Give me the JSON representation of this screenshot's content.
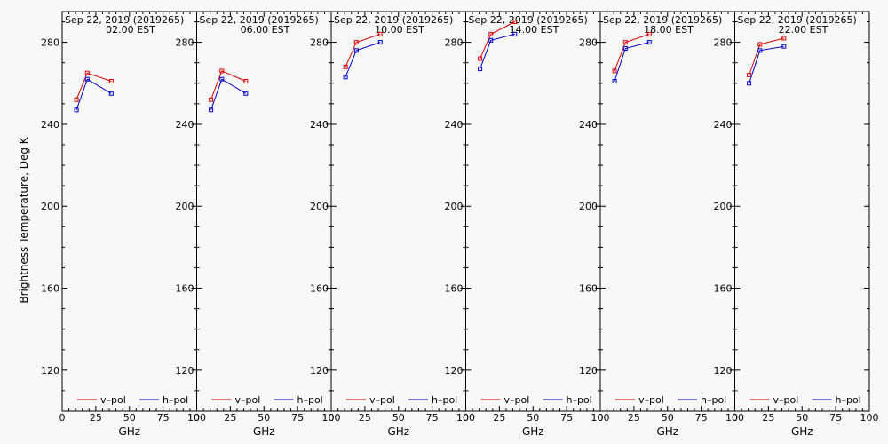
{
  "chart_data": {
    "type": "line",
    "ylabel": "Brightness Temperature, Deg K",
    "xlabel": "GHz",
    "xlim": [
      0,
      100
    ],
    "ylim": [
      100,
      295
    ],
    "x_ticks": [
      0,
      25,
      50,
      75,
      100
    ],
    "x_tick_labels": [
      "0",
      "25",
      "50",
      "75",
      "100"
    ],
    "y_ticks": [
      120,
      160,
      200,
      240,
      280
    ],
    "y_tick_labels": [
      "120",
      "160",
      "200",
      "240",
      "280"
    ],
    "legend": [
      {
        "name": "v–pol",
        "color": "#dd0000"
      },
      {
        "name": "h–pol",
        "color": "#0000cc"
      }
    ],
    "panels": [
      {
        "title": "Sep 22, 2019 (2019265)",
        "time": "02.00 EST",
        "x": [
          10.65,
          18.7,
          36.5
        ],
        "series": [
          {
            "name": "v–pol",
            "values": [
              252,
              265,
              261
            ]
          },
          {
            "name": "h–pol",
            "values": [
              247,
              262,
              255
            ]
          }
        ]
      },
      {
        "title": "Sep 22, 2019 (2019265)",
        "time": "06.00 EST",
        "x": [
          10.65,
          18.7,
          36.5
        ],
        "series": [
          {
            "name": "v–pol",
            "values": [
              252,
              266,
              261
            ]
          },
          {
            "name": "h–pol",
            "values": [
              247,
              262,
              255
            ]
          }
        ]
      },
      {
        "title": "Sep 22, 2019 (2019265)",
        "time": "10.00 EST",
        "x": [
          10.65,
          18.7,
          36.5
        ],
        "series": [
          {
            "name": "v–pol",
            "values": [
              268,
              280,
              284
            ]
          },
          {
            "name": "h–pol",
            "values": [
              263,
              276,
              280
            ]
          }
        ]
      },
      {
        "title": "Sep 22, 2019 (2019265)",
        "time": "14.00 EST",
        "x": [
          10.65,
          18.7,
          36.5
        ],
        "series": [
          {
            "name": "v–pol",
            "values": [
              272,
              284,
              290
            ]
          },
          {
            "name": "h–pol",
            "values": [
              267,
              281,
              284
            ]
          }
        ]
      },
      {
        "title": "Sep 22, 2019 (2019265)",
        "time": "18.00 EST",
        "x": [
          10.65,
          18.7,
          36.5
        ],
        "series": [
          {
            "name": "v–pol",
            "values": [
              266,
              280,
              284
            ]
          },
          {
            "name": "h–pol",
            "values": [
              261,
              277,
              280
            ]
          }
        ]
      },
      {
        "title": "Sep 22, 2019 (2019265)",
        "time": "22.00 EST",
        "x": [
          10.65,
          18.7,
          36.5
        ],
        "series": [
          {
            "name": "v–pol",
            "values": [
              264,
              279,
              282
            ]
          },
          {
            "name": "h–pol",
            "values": [
              260,
              276,
              278
            ]
          }
        ]
      }
    ]
  }
}
